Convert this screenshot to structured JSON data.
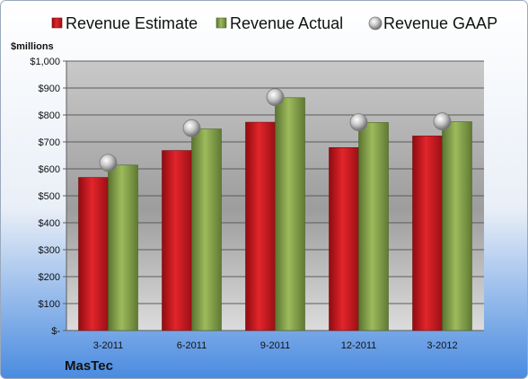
{
  "chart_data": {
    "type": "bar",
    "unit_label": "$millions",
    "company": "MasTec",
    "categories": [
      "3-2011",
      "6-2011",
      "9-2011",
      "12-2011",
      "3-2012"
    ],
    "ylim": [
      0,
      1000
    ],
    "y_ticks": [
      {
        "value": 0,
        "label": "$-"
      },
      {
        "value": 100,
        "label": "$100"
      },
      {
        "value": 200,
        "label": "$200"
      },
      {
        "value": 300,
        "label": "$300"
      },
      {
        "value": 400,
        "label": "$400"
      },
      {
        "value": 500,
        "label": "$500"
      },
      {
        "value": 600,
        "label": "$600"
      },
      {
        "value": 700,
        "label": "$700"
      },
      {
        "value": 800,
        "label": "$800"
      },
      {
        "value": 900,
        "label": "$900"
      },
      {
        "value": 1000,
        "label": "$1,000"
      }
    ],
    "grid": true,
    "legend_position": "top",
    "series": [
      {
        "name": "Revenue Estimate",
        "mark": "bar",
        "color": "#c0161c",
        "values": [
          568,
          668,
          773,
          679,
          722
        ]
      },
      {
        "name": "Revenue Actual",
        "mark": "bar",
        "color": "#7c9a42",
        "values": [
          614,
          748,
          864,
          772,
          775
        ]
      },
      {
        "name": "Revenue GAAP",
        "mark": "point",
        "color": "#b8b8b8",
        "values": [
          622,
          751,
          866,
          773,
          776
        ]
      }
    ]
  }
}
